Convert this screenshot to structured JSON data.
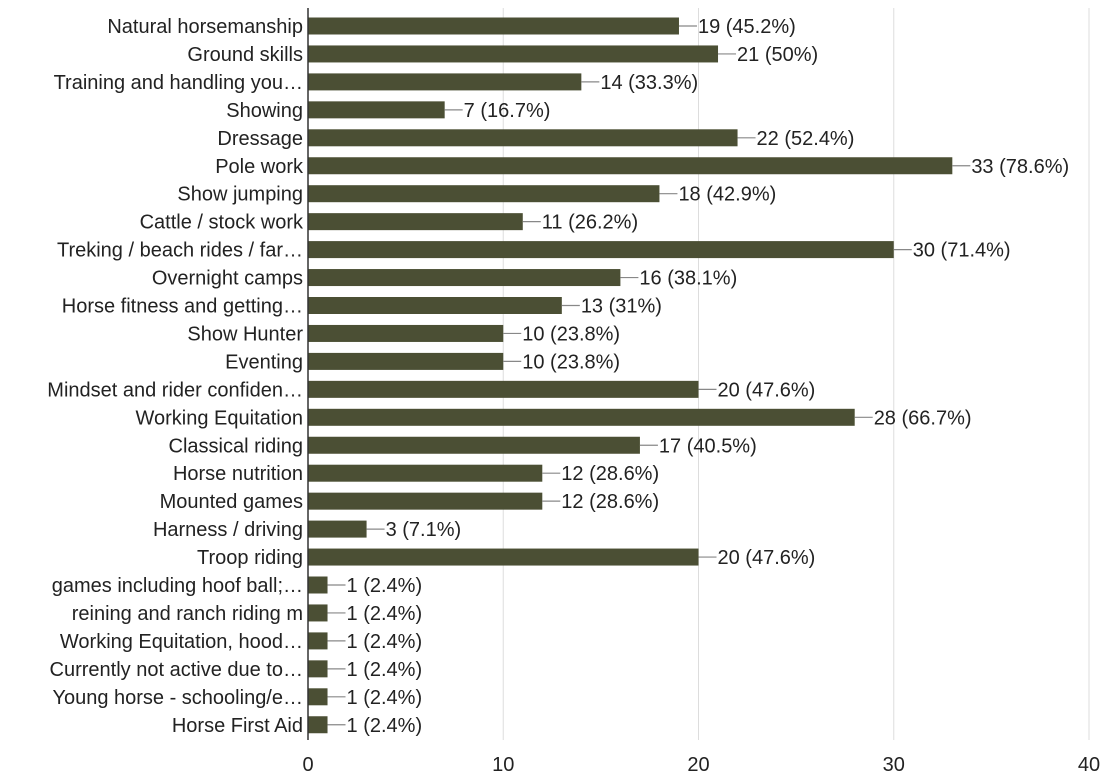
{
  "chart_data": {
    "type": "bar",
    "orientation": "horizontal",
    "bar_color": "#4b4f34",
    "grid": true,
    "grid_color": "#dddddd",
    "xlim": [
      0,
      40
    ],
    "x_ticks": [
      0,
      10,
      20,
      30,
      40
    ],
    "categories": [
      "Natural horsemanship",
      "Ground skills",
      "Training and handling you…",
      "Showing",
      "Dressage",
      "Pole work",
      "Show jumping",
      "Cattle / stock work",
      "Treking / beach rides / far…",
      "Overnight camps",
      "Horse fitness and getting…",
      "Show Hunter",
      "Eventing",
      "Mindset and rider confiden…",
      "Working Equitation",
      "Classical riding",
      "Horse nutrition",
      "Mounted games",
      "Harness / driving",
      "Troop riding",
      "games including hoof ball;…",
      "reining and ranch riding m",
      "Working Equitation, hood…",
      "Currently not active due to…",
      "Young horse - schooling/e…",
      "Horse First Aid"
    ],
    "values": [
      19,
      21,
      14,
      7,
      22,
      33,
      18,
      11,
      30,
      16,
      13,
      10,
      10,
      20,
      28,
      17,
      12,
      12,
      3,
      20,
      1,
      1,
      1,
      1,
      1,
      1
    ],
    "data_labels": [
      "19 (45.2%)",
      "21 (50%)",
      "14 (33.3%)",
      "7 (16.7%)",
      "22 (52.4%)",
      "33 (78.6%)",
      "18 (42.9%)",
      "11 (26.2%)",
      "30 (71.4%)",
      "16 (38.1%)",
      "13 (31%)",
      "10 (23.8%)",
      "10 (23.8%)",
      "20 (47.6%)",
      "28 (66.7%)",
      "17 (40.5%)",
      "12 (28.6%)",
      "12 (28.6%)",
      "3 (7.1%)",
      "20 (47.6%)",
      "1 (2.4%)",
      "1 (2.4%)",
      "1 (2.4%)",
      "1 (2.4%)",
      "1 (2.4%)",
      "1 (2.4%)"
    ]
  }
}
